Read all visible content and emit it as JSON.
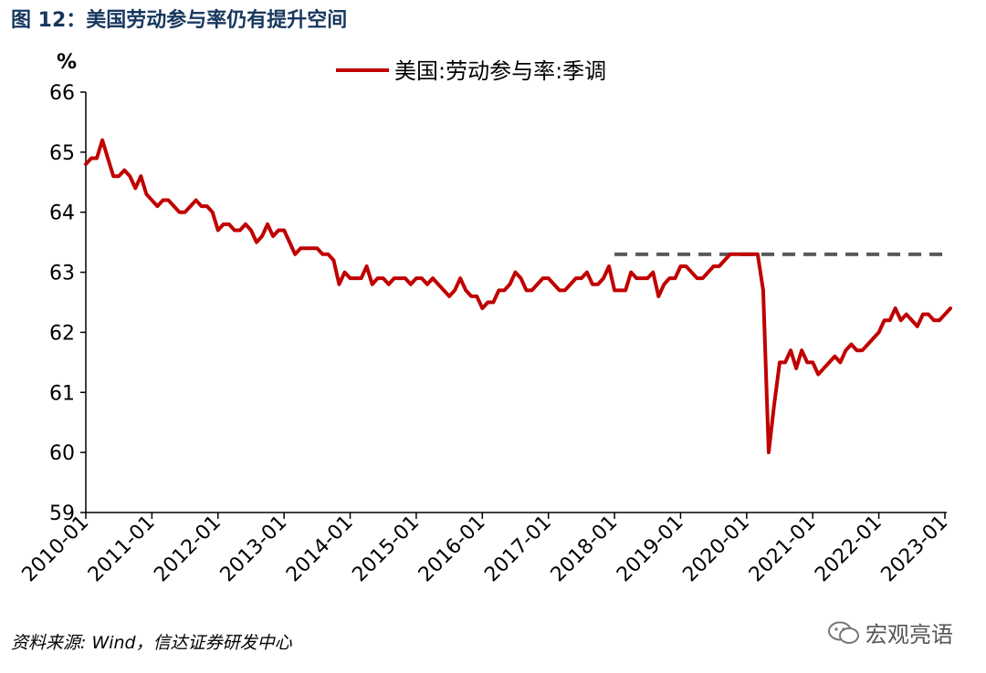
{
  "figure": {
    "title": "图 12：美国劳动参与率仍有提升空间",
    "unit": "%",
    "source": "资料来源: Wind，信达证券研发中心",
    "watermark": "宏观亮语"
  },
  "colors": {
    "series": "#c00000",
    "reference": "#595959",
    "title": "#17375e"
  },
  "chart_data": {
    "type": "line",
    "ylabel": "%",
    "ylim": [
      59,
      66
    ],
    "y_ticks": [
      59,
      60,
      61,
      62,
      63,
      64,
      65,
      66
    ],
    "x_ticks": [
      "2010-01",
      "2011-01",
      "2012-01",
      "2013-01",
      "2014-01",
      "2015-01",
      "2016-01",
      "2017-01",
      "2018-01",
      "2019-01",
      "2020-01",
      "2021-01",
      "2022-01",
      "2023-01"
    ],
    "legend_position": "top-center",
    "grid": false,
    "series": [
      {
        "name": "美国:劳动参与率:季调",
        "start": "2010-01",
        "values": [
          64.8,
          64.9,
          64.9,
          65.2,
          64.9,
          64.6,
          64.6,
          64.7,
          64.6,
          64.4,
          64.6,
          64.3,
          64.2,
          64.1,
          64.2,
          64.2,
          64.1,
          64.0,
          64.0,
          64.1,
          64.2,
          64.1,
          64.1,
          64.0,
          63.7,
          63.8,
          63.8,
          63.7,
          63.7,
          63.8,
          63.7,
          63.5,
          63.6,
          63.8,
          63.6,
          63.7,
          63.7,
          63.5,
          63.3,
          63.4,
          63.4,
          63.4,
          63.4,
          63.3,
          63.3,
          63.2,
          62.8,
          63.0,
          62.9,
          62.9,
          62.9,
          63.1,
          62.8,
          62.9,
          62.9,
          62.8,
          62.9,
          62.9,
          62.9,
          62.8,
          62.9,
          62.9,
          62.8,
          62.9,
          62.8,
          62.7,
          62.6,
          62.7,
          62.9,
          62.7,
          62.6,
          62.6,
          62.4,
          62.5,
          62.5,
          62.7,
          62.7,
          62.8,
          63.0,
          62.9,
          62.7,
          62.7,
          62.8,
          62.9,
          62.9,
          62.8,
          62.7,
          62.7,
          62.8,
          62.9,
          62.9,
          63.0,
          62.8,
          62.8,
          62.9,
          63.1,
          62.7,
          62.7,
          62.7,
          63.0,
          62.9,
          62.9,
          62.9,
          63.0,
          62.6,
          62.8,
          62.9,
          62.9,
          63.1,
          63.1,
          63.0,
          62.9,
          62.9,
          63.0,
          63.1,
          63.1,
          63.2,
          63.3,
          63.3,
          63.3,
          63.3,
          63.3,
          63.3,
          62.7,
          60.0,
          60.8,
          61.5,
          61.5,
          61.7,
          61.4,
          61.7,
          61.5,
          61.5,
          61.3,
          61.4,
          61.5,
          61.6,
          61.5,
          61.7,
          61.8,
          61.7,
          61.7,
          61.8,
          61.9,
          62.0,
          62.2,
          62.2,
          62.4,
          62.2,
          62.3,
          62.2,
          62.1,
          62.3,
          62.3,
          62.2,
          62.2,
          62.3,
          62.4
        ]
      },
      {
        "name": "",
        "style": "dashed",
        "x_range": [
          "2018-01",
          "2023-01"
        ],
        "value": 63.3
      }
    ]
  }
}
